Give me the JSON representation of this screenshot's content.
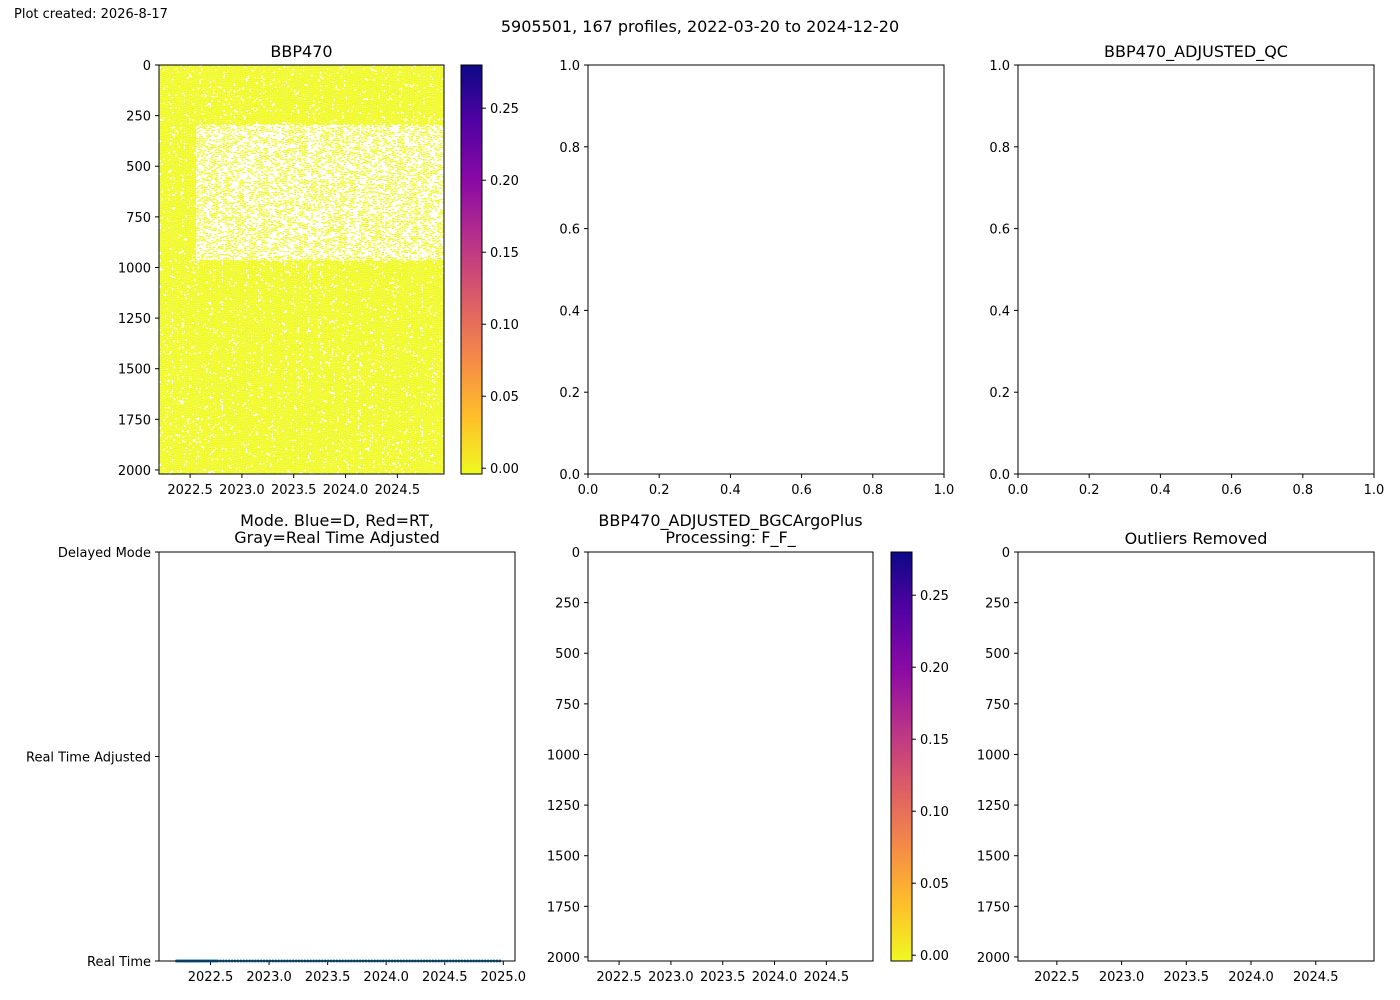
{
  "header": {
    "created": "Plot created: 2026-8-17",
    "suptitle": "5905501, 167 profiles, 2022-03-20 to 2024-12-20"
  },
  "colormap": [
    "#0d0887",
    "#5302a3",
    "#8b0aa5",
    "#b83289",
    "#db5c68",
    "#f48849",
    "#febd2a",
    "#f0f921"
  ],
  "chart_data": [
    {
      "id": "bbp470",
      "type": "heatmap",
      "title": "BBP470",
      "xlim": [
        2022.2,
        2024.95
      ],
      "ylim": [
        2020,
        0
      ],
      "x_ticks": [
        2022.5,
        2023.0,
        2023.5,
        2024.0,
        2024.5
      ],
      "x_tick_labels": [
        "2022.5",
        "2023.0",
        "2023.5",
        "2024.0",
        "2024.5"
      ],
      "y_ticks": [
        0,
        250,
        500,
        750,
        1000,
        1250,
        1500,
        1750,
        2000
      ],
      "y_tick_labels": [
        "0",
        "250",
        "500",
        "750",
        "1000",
        "1250",
        "1500",
        "1750",
        "2000"
      ],
      "profiles": 167,
      "time_range": [
        2022.21,
        2024.97
      ],
      "max_depth": 2000,
      "dominant_value": 0.0,
      "sparse_band": {
        "x_from": 2022.55,
        "depth_from": 290,
        "depth_to": 960
      },
      "colorbar": {
        "ticks": [
          0.0,
          0.05,
          0.1,
          0.15,
          0.2,
          0.25
        ],
        "tick_labels": [
          "0.00",
          "0.05",
          "0.10",
          "0.15",
          "0.20",
          "0.25"
        ],
        "range": [
          -0.004,
          0.28
        ],
        "colormap": "plasma_r"
      }
    },
    {
      "id": "empty-top-middle",
      "type": "scatter",
      "title": "",
      "xlim": [
        0,
        1
      ],
      "ylim": [
        0,
        1
      ],
      "x_ticks": [
        0,
        0.2,
        0.4,
        0.6,
        0.8,
        1.0
      ],
      "x_tick_labels": [
        "0.0",
        "0.2",
        "0.4",
        "0.6",
        "0.8",
        "1.0"
      ],
      "y_ticks": [
        0,
        0.2,
        0.4,
        0.6,
        0.8,
        1.0
      ],
      "y_tick_labels": [
        "0.0",
        "0.2",
        "0.4",
        "0.6",
        "0.8",
        "1.0"
      ],
      "series": []
    },
    {
      "id": "bbp470-adjusted-qc",
      "type": "scatter",
      "title": "BBP470_ADJUSTED_QC",
      "xlim": [
        0,
        1
      ],
      "ylim": [
        0,
        1
      ],
      "x_ticks": [
        0,
        0.2,
        0.4,
        0.6,
        0.8,
        1.0
      ],
      "x_tick_labels": [
        "0.0",
        "0.2",
        "0.4",
        "0.6",
        "0.8",
        "1.0"
      ],
      "y_ticks": [
        0,
        0.2,
        0.4,
        0.6,
        0.8,
        1.0
      ],
      "y_tick_labels": [
        "0.0",
        "0.2",
        "0.4",
        "0.6",
        "0.8",
        "1.0"
      ],
      "series": []
    },
    {
      "id": "mode",
      "type": "scatter",
      "title_lines": [
        "Mode. Blue=D, Red=RT,",
        "Gray=Real Time Adjusted"
      ],
      "xlim": [
        2022.06,
        2025.1
      ],
      "ylim": [
        0,
        2
      ],
      "x_ticks": [
        2022.5,
        2023.0,
        2023.5,
        2024.0,
        2024.5,
        2025.0
      ],
      "x_tick_labels": [
        "2022.5",
        "2023.0",
        "2023.5",
        "2024.0",
        "2024.5",
        "2025.0"
      ],
      "y_ticks": [
        0,
        1,
        2
      ],
      "y_tick_labels": [
        "Real Time",
        "Real Time Adjusted",
        "Delayed Mode"
      ],
      "color": "#1f77b4",
      "points": {
        "count": 167,
        "y": 0,
        "dense_from": 2022.21,
        "dense_to": 2022.56,
        "end": 2024.97
      }
    },
    {
      "id": "bbp470-adjusted-bgcargoplus",
      "type": "heatmap",
      "title_lines": [
        "BBP470_ADJUSTED_BGCArgoPlus",
        "Processing: F_F_"
      ],
      "xlim": [
        2022.2,
        2024.95
      ],
      "ylim": [
        2020,
        0
      ],
      "x_ticks": [
        2022.5,
        2023.0,
        2023.5,
        2024.0,
        2024.5
      ],
      "x_tick_labels": [
        "2022.5",
        "2023.0",
        "2023.5",
        "2024.0",
        "2024.5"
      ],
      "y_ticks": [
        0,
        250,
        500,
        750,
        1000,
        1250,
        1500,
        1750,
        2000
      ],
      "y_tick_labels": [
        "0",
        "250",
        "500",
        "750",
        "1000",
        "1250",
        "1500",
        "1750",
        "2000"
      ],
      "values": [],
      "colorbar": {
        "ticks": [
          0.0,
          0.05,
          0.1,
          0.15,
          0.2,
          0.25
        ],
        "tick_labels": [
          "0.00",
          "0.05",
          "0.10",
          "0.15",
          "0.20",
          "0.25"
        ],
        "range": [
          -0.004,
          0.28
        ],
        "colormap": "plasma_r"
      }
    },
    {
      "id": "outliers-removed",
      "type": "scatter",
      "title": "Outliers Removed",
      "xlim": [
        2022.2,
        2024.95
      ],
      "ylim": [
        2020,
        0
      ],
      "x_ticks": [
        2022.5,
        2023.0,
        2023.5,
        2024.0,
        2024.5
      ],
      "x_tick_labels": [
        "2022.5",
        "2023.0",
        "2023.5",
        "2024.0",
        "2024.5"
      ],
      "y_ticks": [
        0,
        250,
        500,
        750,
        1000,
        1250,
        1500,
        1750,
        2000
      ],
      "y_tick_labels": [
        "0",
        "250",
        "500",
        "750",
        "1000",
        "1250",
        "1500",
        "1750",
        "2000"
      ],
      "series": []
    }
  ]
}
